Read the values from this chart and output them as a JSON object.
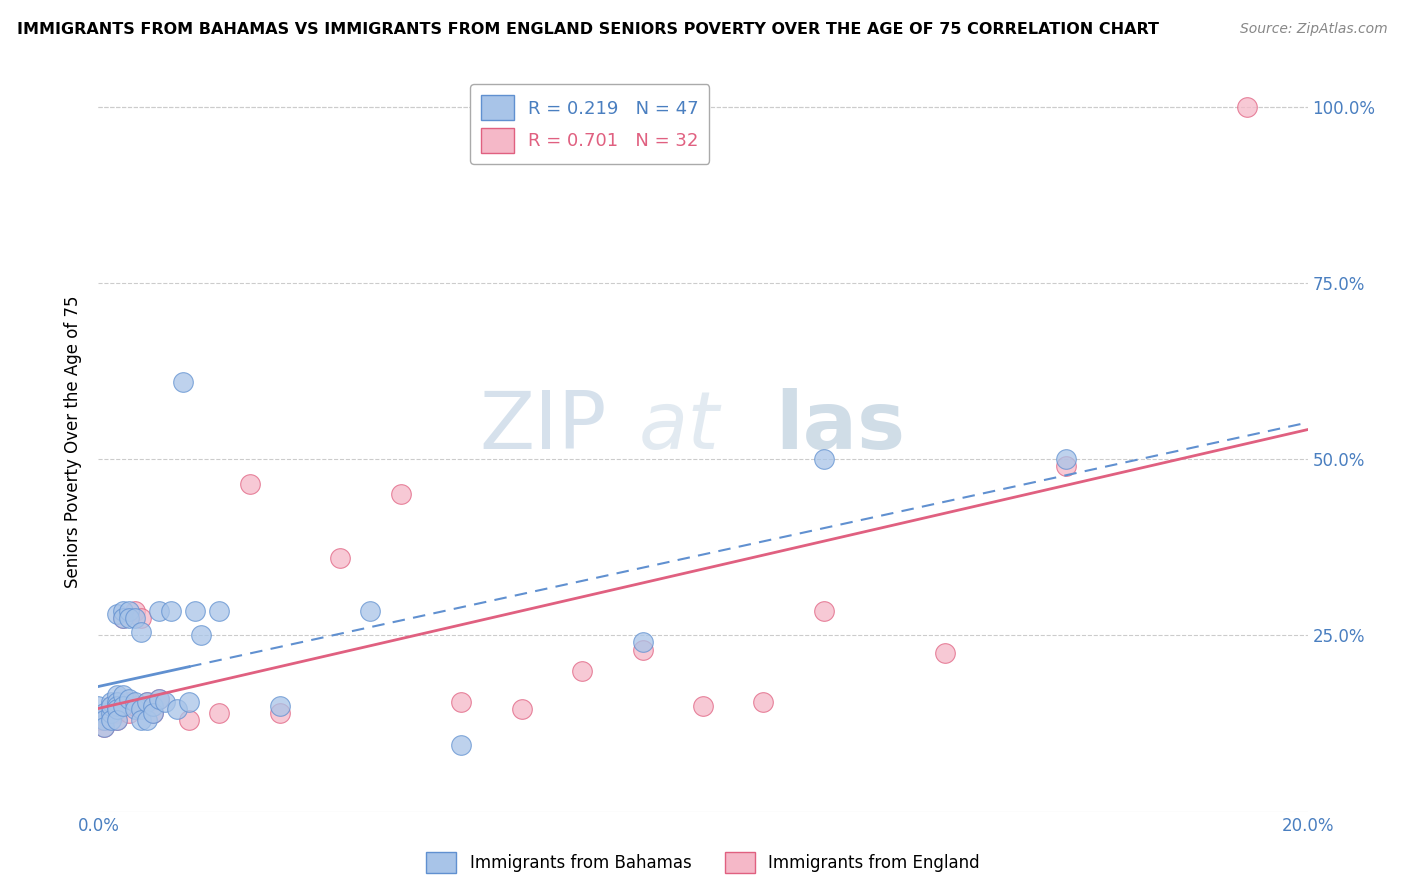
{
  "title": "IMMIGRANTS FROM BAHAMAS VS IMMIGRANTS FROM ENGLAND SENIORS POVERTY OVER THE AGE OF 75 CORRELATION CHART",
  "source": "Source: ZipAtlas.com",
  "ylabel": "Seniors Poverty Over the Age of 75",
  "ytick_labels": [
    "",
    "25.0%",
    "50.0%",
    "75.0%",
    "100.0%"
  ],
  "legend_bahamas": "R = 0.219   N = 47",
  "legend_england": "R = 0.701   N = 32",
  "bahamas_color": "#a8c4e8",
  "england_color": "#f5b8c8",
  "bahamas_line_color": "#6090d0",
  "england_line_color": "#e06080",
  "bahamas_x": [
    0.0,
    0.001,
    0.001,
    0.001,
    0.002,
    0.002,
    0.002,
    0.002,
    0.003,
    0.003,
    0.003,
    0.003,
    0.003,
    0.003,
    0.004,
    0.004,
    0.004,
    0.004,
    0.005,
    0.005,
    0.005,
    0.006,
    0.006,
    0.006,
    0.007,
    0.007,
    0.007,
    0.008,
    0.008,
    0.009,
    0.009,
    0.01,
    0.01,
    0.011,
    0.012,
    0.013,
    0.014,
    0.015,
    0.016,
    0.017,
    0.02,
    0.03,
    0.045,
    0.06,
    0.09,
    0.12,
    0.16
  ],
  "bahamas_y": [
    0.15,
    0.14,
    0.13,
    0.12,
    0.14,
    0.155,
    0.15,
    0.13,
    0.165,
    0.155,
    0.15,
    0.145,
    0.13,
    0.28,
    0.165,
    0.285,
    0.275,
    0.15,
    0.285,
    0.275,
    0.16,
    0.155,
    0.145,
    0.275,
    0.145,
    0.13,
    0.255,
    0.155,
    0.13,
    0.15,
    0.14,
    0.16,
    0.285,
    0.155,
    0.285,
    0.145,
    0.61,
    0.155,
    0.285,
    0.25,
    0.285,
    0.15,
    0.285,
    0.095,
    0.24,
    0.5,
    0.5
  ],
  "england_x": [
    0.0,
    0.001,
    0.001,
    0.002,
    0.002,
    0.003,
    0.003,
    0.004,
    0.005,
    0.005,
    0.006,
    0.006,
    0.007,
    0.008,
    0.009,
    0.01,
    0.015,
    0.02,
    0.025,
    0.03,
    0.04,
    0.05,
    0.06,
    0.07,
    0.08,
    0.09,
    0.1,
    0.11,
    0.12,
    0.14,
    0.16,
    0.19
  ],
  "england_y": [
    0.13,
    0.12,
    0.13,
    0.145,
    0.15,
    0.14,
    0.13,
    0.275,
    0.155,
    0.14,
    0.285,
    0.15,
    0.275,
    0.155,
    0.14,
    0.16,
    0.13,
    0.14,
    0.465,
    0.14,
    0.36,
    0.45,
    0.155,
    0.145,
    0.2,
    0.23,
    0.15,
    0.155,
    0.285,
    0.225,
    0.49,
    1.0
  ],
  "xmin": 0.0,
  "xmax": 0.2,
  "ymin": 0.0,
  "ymax": 1.05,
  "ytick_vals": [
    0.0,
    0.25,
    0.5,
    0.75,
    1.0
  ]
}
